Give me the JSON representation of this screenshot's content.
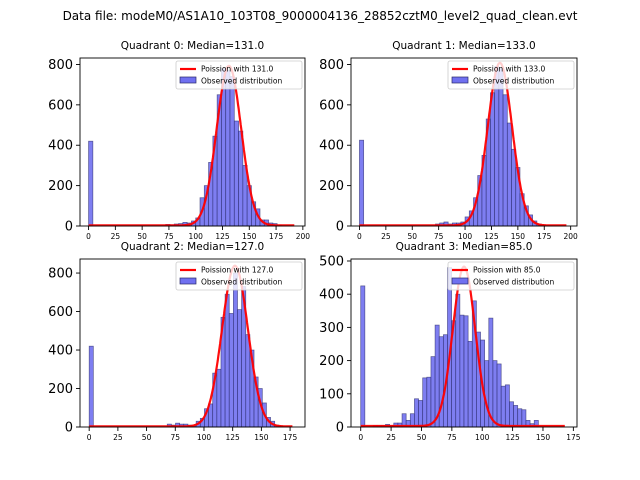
{
  "figure": {
    "suptitle": "Data file: modeM0/AS1A10_103T08_9000004136_28852cztM0_level2_quad_clean.evt"
  },
  "colors": {
    "bar_fill": "#7070f0",
    "bar_edge": "#2a2a6a",
    "poisson_line": "#ff0000"
  },
  "chart_data": [
    {
      "type": "bar",
      "title": "Quadrant 0: Median=131.0",
      "legend": [
        "Poission with 131.0",
        "Observed distribution"
      ],
      "legend_position": "top-right",
      "median": 131.0,
      "xlim": [
        -8,
        202
      ],
      "ylim": [
        0,
        832
      ],
      "xticks": [
        0,
        25,
        50,
        75,
        100,
        125,
        150,
        175,
        200
      ],
      "yticks": [
        0,
        200,
        400,
        600,
        800
      ],
      "bin_width": 4,
      "bins": [
        {
          "x": 0,
          "count": 420
        },
        {
          "x": 72,
          "count": 8
        },
        {
          "x": 76,
          "count": 6
        },
        {
          "x": 80,
          "count": 10
        },
        {
          "x": 84,
          "count": 12
        },
        {
          "x": 88,
          "count": 18
        },
        {
          "x": 92,
          "count": 15
        },
        {
          "x": 96,
          "count": 25
        },
        {
          "x": 100,
          "count": 40
        },
        {
          "x": 104,
          "count": 140
        },
        {
          "x": 108,
          "count": 200
        },
        {
          "x": 112,
          "count": 315
        },
        {
          "x": 116,
          "count": 445
        },
        {
          "x": 120,
          "count": 650
        },
        {
          "x": 124,
          "count": 780
        },
        {
          "x": 128,
          "count": 770
        },
        {
          "x": 132,
          "count": 740
        },
        {
          "x": 136,
          "count": 520
        },
        {
          "x": 140,
          "count": 470
        },
        {
          "x": 144,
          "count": 300
        },
        {
          "x": 148,
          "count": 200
        },
        {
          "x": 152,
          "count": 120
        },
        {
          "x": 156,
          "count": 85
        },
        {
          "x": 160,
          "count": 30
        },
        {
          "x": 164,
          "count": 30
        },
        {
          "x": 168,
          "count": 15
        },
        {
          "x": 172,
          "count": 12
        },
        {
          "x": 176,
          "count": 5
        }
      ],
      "poisson_peak": 790,
      "poisson_xrange": [
        0,
        192
      ]
    },
    {
      "type": "bar",
      "title": "Quadrant 1: Median=133.0",
      "legend": [
        "Poission with 133.0",
        "Observed distribution"
      ],
      "legend_position": "top-right",
      "median": 133.0,
      "xlim": [
        -8,
        206
      ],
      "ylim": [
        0,
        832
      ],
      "xticks": [
        0,
        25,
        50,
        75,
        100,
        125,
        150,
        175,
        200
      ],
      "yticks": [
        0,
        200,
        400,
        600,
        800
      ],
      "bin_width": 4,
      "bins": [
        {
          "x": 0,
          "count": 425
        },
        {
          "x": 72,
          "count": 10
        },
        {
          "x": 76,
          "count": 15
        },
        {
          "x": 80,
          "count": 20
        },
        {
          "x": 84,
          "count": 10
        },
        {
          "x": 88,
          "count": 15
        },
        {
          "x": 92,
          "count": 15
        },
        {
          "x": 96,
          "count": 20
        },
        {
          "x": 100,
          "count": 45
        },
        {
          "x": 104,
          "count": 75
        },
        {
          "x": 108,
          "count": 140
        },
        {
          "x": 112,
          "count": 250
        },
        {
          "x": 116,
          "count": 350
        },
        {
          "x": 120,
          "count": 530
        },
        {
          "x": 124,
          "count": 660
        },
        {
          "x": 128,
          "count": 790
        },
        {
          "x": 132,
          "count": 780
        },
        {
          "x": 136,
          "count": 650
        },
        {
          "x": 140,
          "count": 510
        },
        {
          "x": 144,
          "count": 380
        },
        {
          "x": 148,
          "count": 290
        },
        {
          "x": 152,
          "count": 160
        },
        {
          "x": 156,
          "count": 100
        },
        {
          "x": 160,
          "count": 55
        },
        {
          "x": 164,
          "count": 25
        },
        {
          "x": 168,
          "count": 10
        },
        {
          "x": 172,
          "count": 5
        }
      ],
      "poisson_peak": 805,
      "poisson_xrange": [
        0,
        196
      ]
    },
    {
      "type": "bar",
      "title": "Quadrant 2: Median=127.0",
      "legend": [
        "Poission with 127.0",
        "Observed distribution"
      ],
      "legend_position": "top-right",
      "median": 127.0,
      "xlim": [
        -8,
        188
      ],
      "ylim": [
        0,
        873
      ],
      "xticks": [
        0,
        25,
        50,
        75,
        100,
        125,
        150,
        175
      ],
      "yticks": [
        0,
        200,
        400,
        600,
        800
      ],
      "bin_width": 3.6,
      "bins": [
        {
          "x": 0,
          "count": 420
        },
        {
          "x": 68,
          "count": 15
        },
        {
          "x": 71.6,
          "count": 10
        },
        {
          "x": 75.2,
          "count": 20
        },
        {
          "x": 78.8,
          "count": 15
        },
        {
          "x": 82.4,
          "count": 15
        },
        {
          "x": 86,
          "count": 10
        },
        {
          "x": 89.6,
          "count": 5
        },
        {
          "x": 93.2,
          "count": 30
        },
        {
          "x": 96.8,
          "count": 45
        },
        {
          "x": 100.4,
          "count": 95
        },
        {
          "x": 104,
          "count": 120
        },
        {
          "x": 107.6,
          "count": 280
        },
        {
          "x": 111.2,
          "count": 300
        },
        {
          "x": 114.8,
          "count": 570
        },
        {
          "x": 118.4,
          "count": 690
        },
        {
          "x": 122,
          "count": 590
        },
        {
          "x": 125.6,
          "count": 800
        },
        {
          "x": 129.2,
          "count": 610
        },
        {
          "x": 132.8,
          "count": 730
        },
        {
          "x": 136.4,
          "count": 480
        },
        {
          "x": 140,
          "count": 400
        },
        {
          "x": 143.6,
          "count": 260
        },
        {
          "x": 147.2,
          "count": 200
        },
        {
          "x": 150.8,
          "count": 125
        },
        {
          "x": 154.4,
          "count": 50
        },
        {
          "x": 158,
          "count": 30
        },
        {
          "x": 161.6,
          "count": 10
        },
        {
          "x": 165.2,
          "count": 5
        }
      ],
      "poisson_peak": 835,
      "poisson_xrange": [
        0,
        177
      ]
    },
    {
      "type": "bar",
      "title": "Quadrant 3: Median=85.0",
      "legend": [
        "Poission with 85.0",
        "Observed distribution"
      ],
      "legend_position": "top-right",
      "median": 85.0,
      "xlim": [
        -8,
        178
      ],
      "ylim": [
        0,
        506
      ],
      "xticks": [
        0,
        25,
        50,
        75,
        100,
        125,
        150,
        175
      ],
      "yticks": [
        0,
        100,
        200,
        300,
        400,
        500
      ],
      "bin_width": 3.4,
      "bins": [
        {
          "x": 0,
          "count": 425
        },
        {
          "x": 10.2,
          "count": 5
        },
        {
          "x": 13.6,
          "count": 5
        },
        {
          "x": 17,
          "count": 5
        },
        {
          "x": 20.4,
          "count": 8
        },
        {
          "x": 23.8,
          "count": 5
        },
        {
          "x": 27.2,
          "count": 12
        },
        {
          "x": 30.6,
          "count": 12
        },
        {
          "x": 34,
          "count": 40
        },
        {
          "x": 37.4,
          "count": 20
        },
        {
          "x": 40.8,
          "count": 40
        },
        {
          "x": 44.2,
          "count": 85
        },
        {
          "x": 47.6,
          "count": 80
        },
        {
          "x": 51,
          "count": 148
        },
        {
          "x": 54.4,
          "count": 150
        },
        {
          "x": 57.8,
          "count": 212
        },
        {
          "x": 61.2,
          "count": 307
        },
        {
          "x": 64.6,
          "count": 272
        },
        {
          "x": 68,
          "count": 278
        },
        {
          "x": 71.4,
          "count": 480
        },
        {
          "x": 74.8,
          "count": 320
        },
        {
          "x": 78.2,
          "count": 400
        },
        {
          "x": 81.6,
          "count": 337
        },
        {
          "x": 85,
          "count": 335
        },
        {
          "x": 88.4,
          "count": 258
        },
        {
          "x": 91.8,
          "count": 380
        },
        {
          "x": 95.2,
          "count": 286
        },
        {
          "x": 98.6,
          "count": 262
        },
        {
          "x": 102,
          "count": 200
        },
        {
          "x": 105.4,
          "count": 328
        },
        {
          "x": 108.8,
          "count": 200
        },
        {
          "x": 112.2,
          "count": 190
        },
        {
          "x": 115.6,
          "count": 123
        },
        {
          "x": 119,
          "count": 127
        },
        {
          "x": 122.4,
          "count": 76
        },
        {
          "x": 125.8,
          "count": 65
        },
        {
          "x": 129.2,
          "count": 55
        },
        {
          "x": 132.6,
          "count": 52
        },
        {
          "x": 136,
          "count": 20
        },
        {
          "x": 139.4,
          "count": 10
        },
        {
          "x": 142.8,
          "count": 20
        }
      ],
      "poisson_peak": 480,
      "poisson_xrange": [
        0,
        168
      ]
    }
  ]
}
